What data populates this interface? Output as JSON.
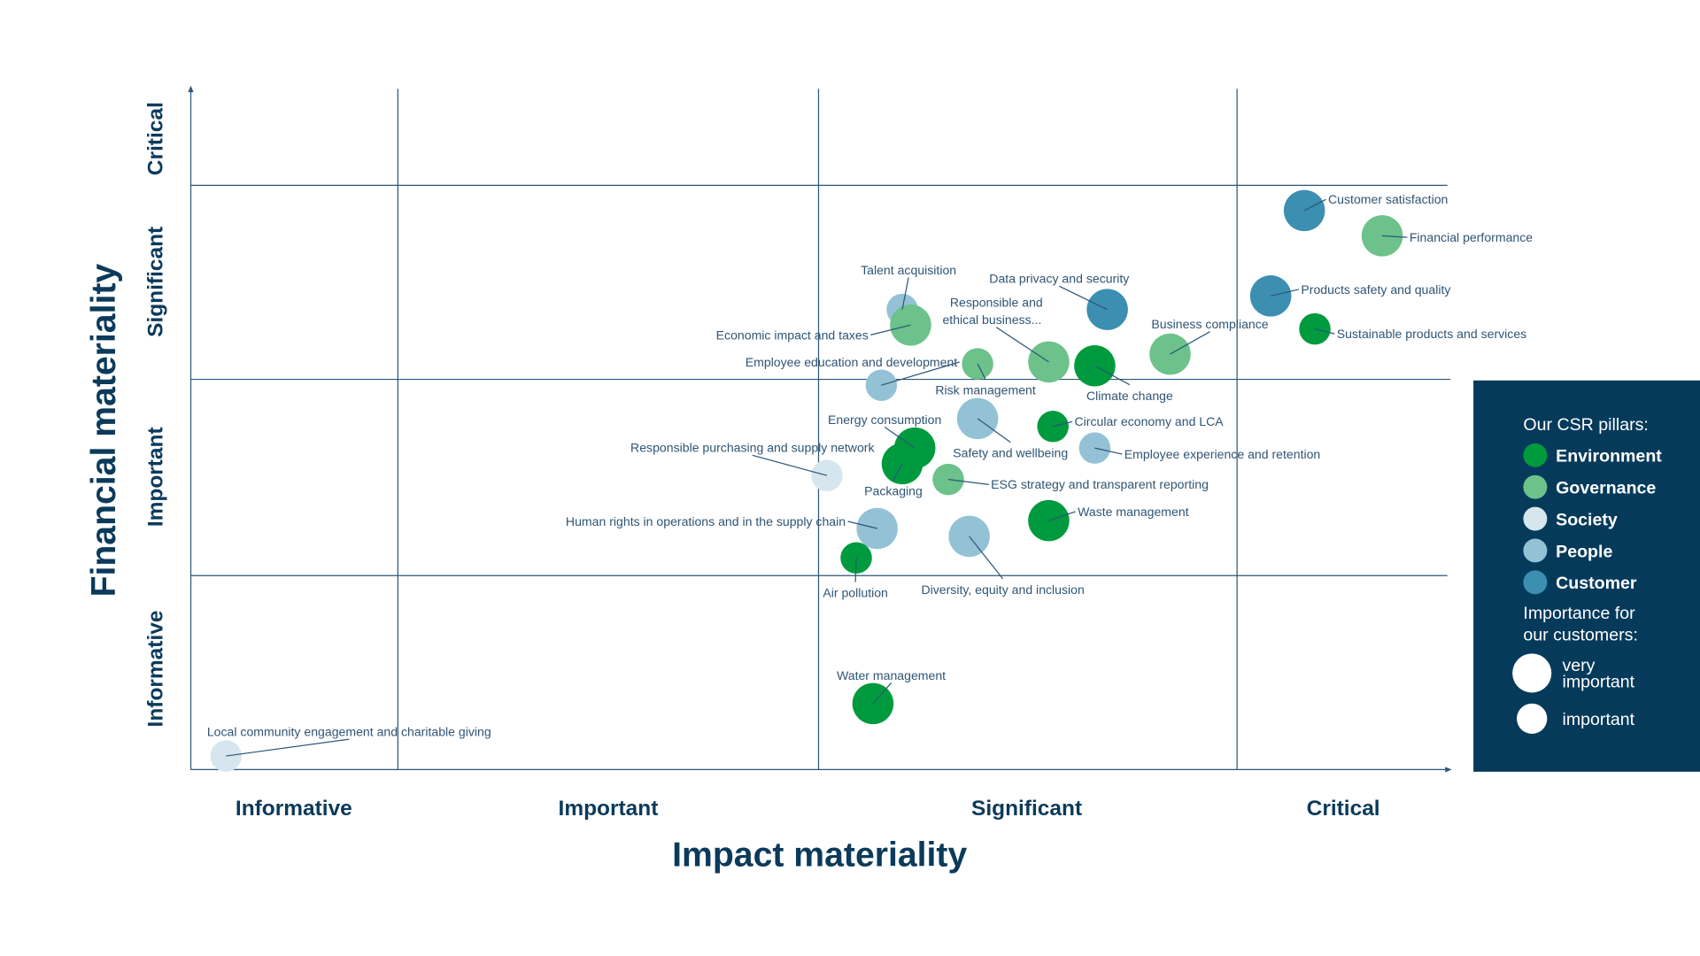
{
  "chart_data": {
    "type": "scatter",
    "title": "",
    "xlabel": "Impact materiality",
    "ylabel": "Financial materiality",
    "x_categories": [
      "Informative",
      "Important",
      "Significant",
      "Critical"
    ],
    "y_categories": [
      "Informative",
      "Important",
      "Significant",
      "Critical"
    ],
    "xlim": [
      0,
      4
    ],
    "ylim": [
      0,
      4
    ],
    "grid": true,
    "legend_position": "right",
    "legend": {
      "pillars_title": "Our CSR pillars:",
      "pillars": [
        {
          "name": "Environment",
          "color": "#009a3e"
        },
        {
          "name": "Governance",
          "color": "#6cc28a"
        },
        {
          "name": "Society",
          "color": "#d6e6ee"
        },
        {
          "name": "People",
          "color": "#93c2d6"
        },
        {
          "name": "Customer",
          "color": "#3c8fb1"
        }
      ],
      "size_title_1": "Importance for",
      "size_title_2": "our customers:",
      "sizes": [
        {
          "label_1": "very",
          "label_2": "important",
          "level": "very important"
        },
        {
          "label_1": "important",
          "level": "important"
        }
      ]
    },
    "points": [
      {
        "label": "Customer satisfaction",
        "pillar": "Customer",
        "size": "very important",
        "x": 3.32,
        "y": 2.87
      },
      {
        "label": "Financial performance",
        "pillar": "Governance",
        "size": "very important",
        "x": 3.69,
        "y": 2.74
      },
      {
        "label": "Products safety and quality",
        "pillar": "Customer",
        "size": "very important",
        "x": 3.16,
        "y": 2.43
      },
      {
        "label": "Sustainable products and services",
        "pillar": "Environment",
        "size": "important",
        "x": 3.37,
        "y": 2.26
      },
      {
        "label": "Data privacy and security",
        "pillar": "Customer",
        "size": "very important",
        "x": 2.69,
        "y": 2.36
      },
      {
        "label": "Business compliance",
        "pillar": "Governance",
        "size": "very important",
        "x": 2.84,
        "y": 2.13
      },
      {
        "label": "Climate change",
        "pillar": "Environment",
        "size": "very important",
        "x": 2.66,
        "y": 2.07
      },
      {
        "label": "Responsible and ethical business...",
        "label_line1": "Responsible and",
        "label_line2": "ethical business...",
        "pillar": "Governance",
        "size": "very important",
        "x": 2.55,
        "y": 2.09
      },
      {
        "label": "Risk management",
        "pillar": "Governance",
        "size": "important",
        "x": 2.38,
        "y": 2.08
      },
      {
        "label": "Talent acquisition",
        "pillar": "People",
        "size": "important",
        "x": 2.2,
        "y": 2.36
      },
      {
        "label": "Economic impact and taxes",
        "pillar": "Governance",
        "size": "very important",
        "x": 2.22,
        "y": 2.28
      },
      {
        "label": "Employee education and development",
        "pillar": "People",
        "size": "important",
        "x": 2.15,
        "y": 1.97
      },
      {
        "label": "Safety and wellbeing",
        "pillar": "People",
        "size": "very important",
        "x": 2.38,
        "y": 1.8
      },
      {
        "label": "Circular economy and LCA",
        "pillar": "Environment",
        "size": "important",
        "x": 2.56,
        "y": 1.76
      },
      {
        "label": "Employee experience and retention",
        "pillar": "People",
        "size": "important",
        "x": 2.66,
        "y": 1.65
      },
      {
        "label": "Energy consumption",
        "pillar": "Environment",
        "size": "very important",
        "x": 2.23,
        "y": 1.65
      },
      {
        "label": "Packaging",
        "pillar": "Environment",
        "size": "very important",
        "x": 2.2,
        "y": 1.57
      },
      {
        "label": "Responsible purchasing and supply network",
        "pillar": "Society",
        "size": "important",
        "x": 2.02,
        "y": 1.51
      },
      {
        "label": "ESG strategy and transparent reporting",
        "pillar": "Governance",
        "size": "important",
        "x": 2.31,
        "y": 1.49
      },
      {
        "label": "Waste management",
        "pillar": "Environment",
        "size": "very important",
        "x": 2.55,
        "y": 1.28
      },
      {
        "label": "Human rights in operations and in the supply chain",
        "pillar": "People",
        "size": "very important",
        "x": 2.14,
        "y": 1.24
      },
      {
        "label": "Diversity, equity and inclusion",
        "pillar": "People",
        "size": "very important",
        "x": 2.36,
        "y": 1.2
      },
      {
        "label": "Air pollution",
        "pillar": "Environment",
        "size": "important",
        "x": 2.09,
        "y": 1.09
      },
      {
        "label": "Water management",
        "pillar": "Environment",
        "size": "very important",
        "x": 2.13,
        "y": 0.34
      },
      {
        "label": "Local community engagement and charitable giving",
        "pillar": "Society",
        "size": "important",
        "x": 0.17,
        "y": 0.07
      }
    ]
  }
}
